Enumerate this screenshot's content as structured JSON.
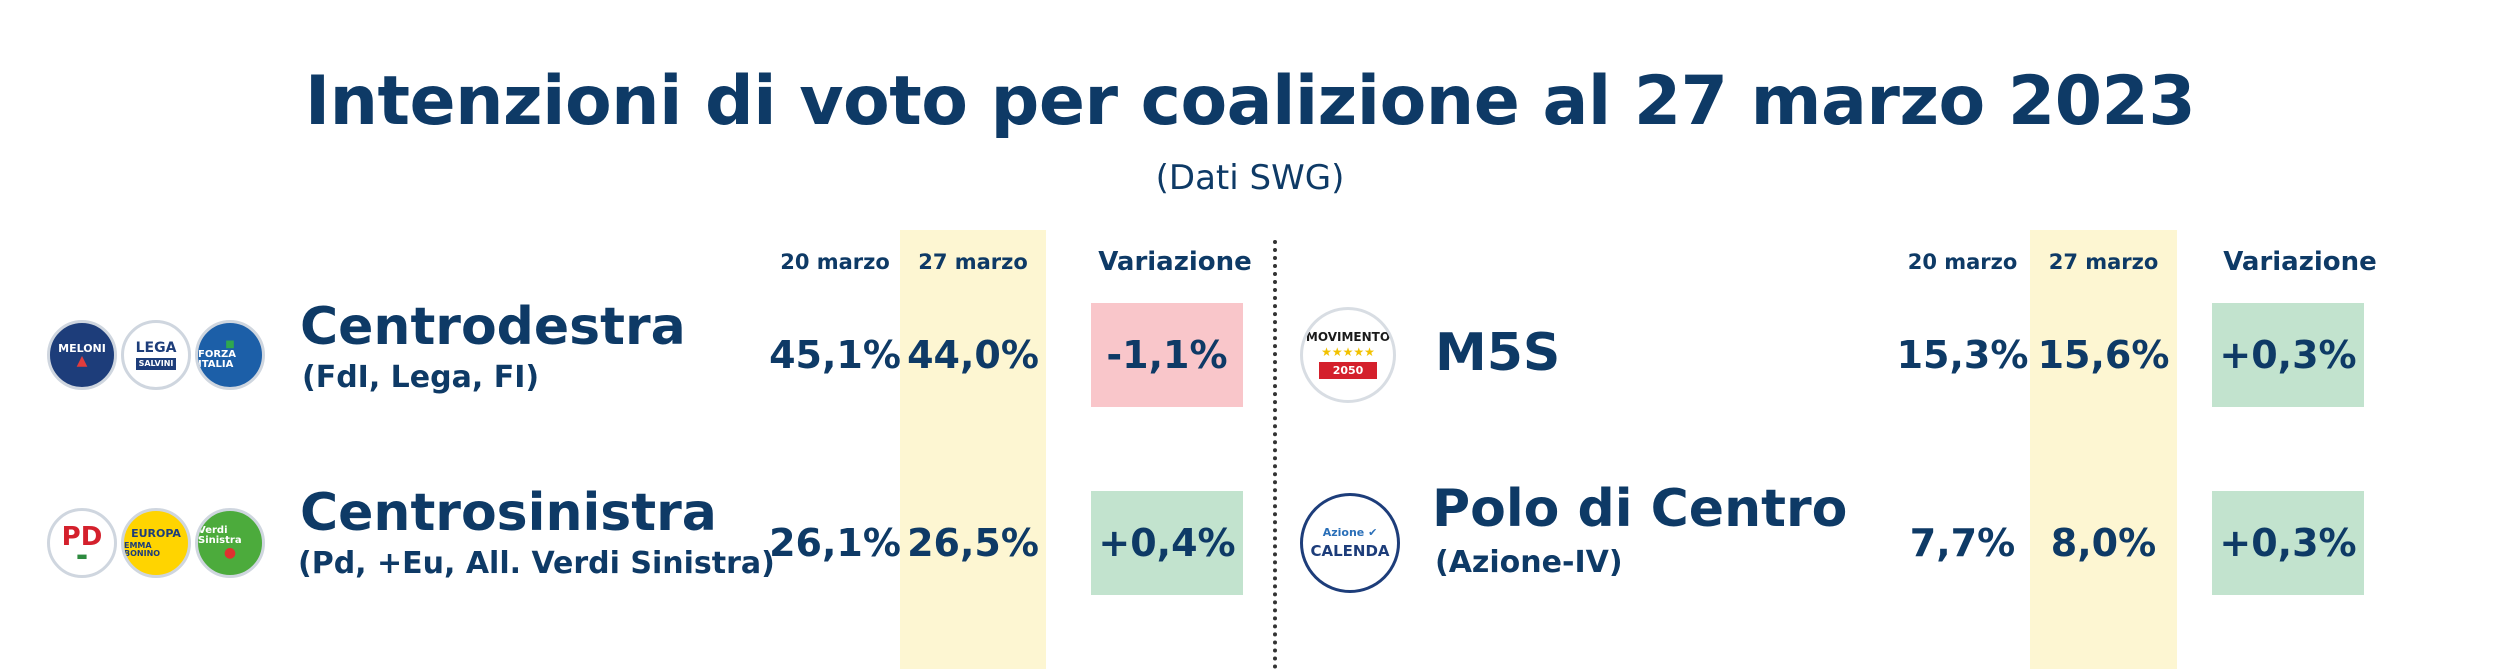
{
  "title": "Intenzioni di voto per coalizione al 27 marzo 2023",
  "subtitle": "(Dati SWG)",
  "columns": {
    "prev": "20 marzo",
    "curr": "27 marzo",
    "delta": "Variazione"
  },
  "colors": {
    "text": "#0e3a66",
    "highlight": "#fdf6d2",
    "negative_bg": "#f9c6ca",
    "positive_bg": "#c2e3ce"
  },
  "left": [
    {
      "name": "Centrodestra",
      "sub": "(FdI, Lega, FI)",
      "prev": "45,1%",
      "curr": "44,0%",
      "delta": "-1,1%",
      "trend": "negative",
      "logos": [
        {
          "icon": "fratelli-ditalia-logo",
          "text": "MELONI"
        },
        {
          "icon": "lega-logo",
          "text": "LEGA"
        },
        {
          "icon": "forza-italia-logo",
          "text": "FORZA ITALIA"
        }
      ]
    },
    {
      "name": "Centrosinistra",
      "sub": "(Pd, +Eu, All. Verdi Sinistra)",
      "prev": "26,1%",
      "curr": "26,5%",
      "delta": "+0,4%",
      "trend": "positive",
      "logos": [
        {
          "icon": "partito-democratico-logo",
          "text": "PD"
        },
        {
          "icon": "piu-europa-logo",
          "text": "EUROPA"
        },
        {
          "icon": "verdi-sinistra-logo",
          "text": "Verdi Sinistra"
        }
      ]
    }
  ],
  "right": [
    {
      "name": "M5S",
      "sub": "",
      "prev": "15,3%",
      "curr": "15,6%",
      "delta": "+0,3%",
      "trend": "positive",
      "logos": [
        {
          "icon": "movimento-5-stelle-logo",
          "text": "MOVIMENTO"
        }
      ]
    },
    {
      "name": "Polo di Centro",
      "sub": "(Azione-IV)",
      "prev": "7,7%",
      "curr": "8,0%",
      "delta": "+0,3%",
      "trend": "positive",
      "logos": [
        {
          "icon": "azione-italia-viva-logo",
          "text": "CALENDA"
        }
      ]
    }
  ],
  "chart_data": {
    "type": "table",
    "title": "Intenzioni di voto per coalizione al 27 marzo 2023",
    "subtitle": "(Dati SWG)",
    "columns": [
      "20 marzo",
      "27 marzo",
      "Variazione"
    ],
    "rows": [
      {
        "coalition": "Centrodestra",
        "20 marzo": 45.1,
        "27 marzo": 44.0,
        "Variazione": -1.1
      },
      {
        "coalition": "Centrosinistra",
        "20 marzo": 26.1,
        "27 marzo": 26.5,
        "Variazione": 0.4
      },
      {
        "coalition": "M5S",
        "20 marzo": 15.3,
        "27 marzo": 15.6,
        "Variazione": 0.3
      },
      {
        "coalition": "Polo di Centro",
        "20 marzo": 7.7,
        "27 marzo": 8.0,
        "Variazione": 0.3
      }
    ]
  }
}
